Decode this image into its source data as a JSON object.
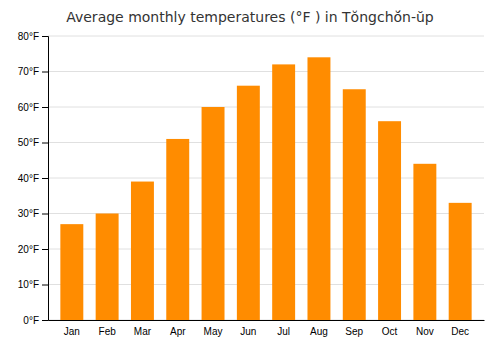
{
  "chart_data": {
    "type": "bar",
    "title": "Average monthly temperatures (°F ) in Tŏngchŏ́n-ŭp",
    "categories": [
      "Jan",
      "Feb",
      "Mar",
      "Apr",
      "May",
      "Jun",
      "Jul",
      "Aug",
      "Sep",
      "Oct",
      "Nov",
      "Dec"
    ],
    "values": [
      27,
      30,
      39,
      51,
      60,
      66,
      72,
      74,
      65,
      56,
      44,
      33
    ],
    "color": "#FF8C00",
    "ylim": [
      0,
      80
    ],
    "yticks": [
      {
        "value": 0,
        "label": "0°F"
      },
      {
        "value": 10,
        "label": "10°F"
      },
      {
        "value": 20,
        "label": "20°F"
      },
      {
        "value": 30,
        "label": "30°F"
      },
      {
        "value": 40,
        "label": "40°F"
      },
      {
        "value": 50,
        "label": "50°F"
      },
      {
        "value": 60,
        "label": "60°F"
      },
      {
        "value": 70,
        "label": "70°F"
      },
      {
        "value": 80,
        "label": "80°F"
      }
    ],
    "grid": true
  }
}
